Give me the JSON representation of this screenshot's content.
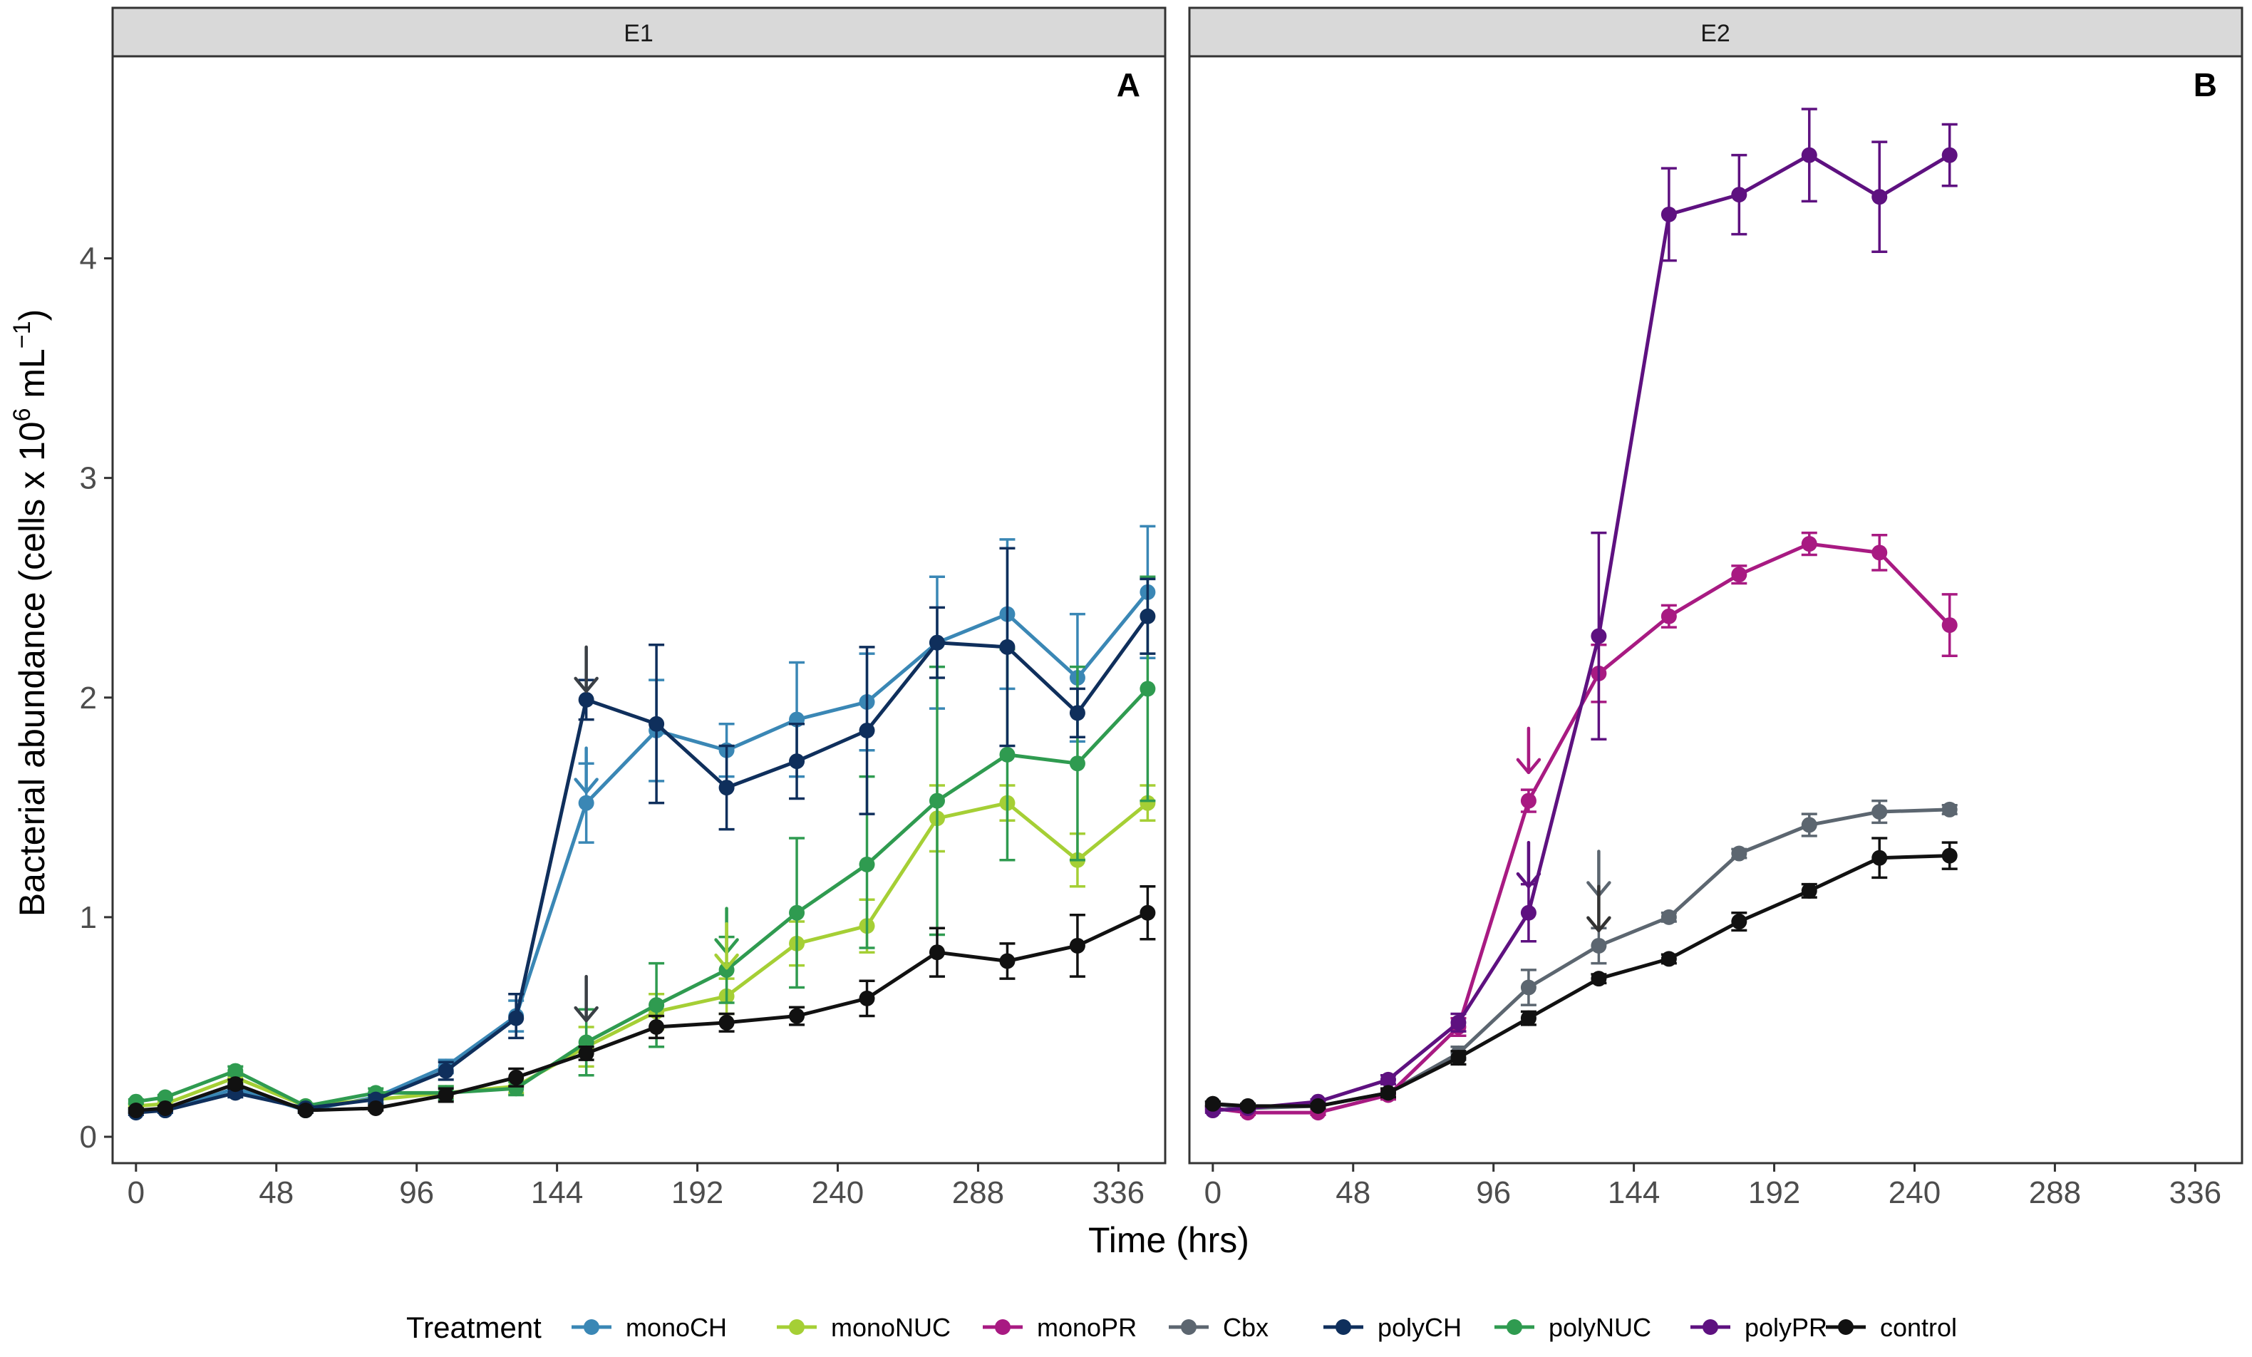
{
  "chart_data": {
    "type": "line",
    "ylabel_prefix": "Bacterial abundance (cells x 10",
    "ylabel_exp1": "6",
    "ylabel_mid": " mL",
    "ylabel_exp2": "−1",
    "ylabel_suffix": ")",
    "xlabel": "Time (hrs)",
    "legend_title": "Treatment",
    "legend_position": "bottom",
    "xlim": [
      -8,
      352
    ],
    "ylim": [
      -0.12,
      4.92
    ],
    "xticks": [
      0,
      48,
      96,
      144,
      192,
      240,
      288,
      336
    ],
    "yticks": [
      0,
      1,
      2,
      3,
      4
    ],
    "treatments": [
      {
        "name": "monoCH",
        "color": "#3A87B5"
      },
      {
        "name": "monoNUC",
        "color": "#A5CF35"
      },
      {
        "name": "monoPR",
        "color": "#A81A82"
      },
      {
        "name": "Cbx",
        "color": "#5C6670"
      },
      {
        "name": "polyCH",
        "color": "#0F2F5C"
      },
      {
        "name": "polyNUC",
        "color": "#2F9B50"
      },
      {
        "name": "polyPR",
        "color": "#5E1180"
      },
      {
        "name": "control",
        "color": "#111111"
      }
    ],
    "panels": [
      {
        "strip": "E1",
        "letter": "A",
        "series": [
          {
            "name": "monoCH",
            "points": [
              [
                0,
                0.12,
                0.13,
                0.11
              ],
              [
                10,
                0.12,
                0.13,
                0.11
              ],
              [
                34,
                0.22,
                0.24,
                0.2
              ],
              [
                58,
                0.12,
                0.13,
                0.11
              ],
              [
                82,
                0.18,
                0.2,
                0.16
              ],
              [
                106,
                0.32,
                0.35,
                0.29
              ],
              [
                130,
                0.55,
                0.62,
                0.48
              ],
              [
                154,
                1.52,
                1.7,
                1.34
              ],
              [
                178,
                1.85,
                2.08,
                1.62
              ],
              [
                202,
                1.76,
                1.88,
                1.64
              ],
              [
                226,
                1.9,
                2.16,
                1.64
              ],
              [
                250,
                1.98,
                2.2,
                1.76
              ],
              [
                274,
                2.25,
                2.55,
                1.95
              ],
              [
                298,
                2.38,
                2.72,
                2.04
              ],
              [
                322,
                2.09,
                2.38,
                1.8
              ],
              [
                346,
                2.48,
                2.78,
                2.18
              ]
            ]
          },
          {
            "name": "monoNUC",
            "points": [
              [
                0,
                0.14,
                0.15,
                0.13
              ],
              [
                10,
                0.15,
                0.16,
                0.14
              ],
              [
                34,
                0.27,
                0.29,
                0.25
              ],
              [
                58,
                0.14,
                0.15,
                0.13
              ],
              [
                82,
                0.17,
                0.19,
                0.15
              ],
              [
                106,
                0.2,
                0.23,
                0.18
              ],
              [
                130,
                0.23,
                0.26,
                0.2
              ],
              [
                154,
                0.41,
                0.5,
                0.32
              ],
              [
                178,
                0.57,
                0.65,
                0.49
              ],
              [
                202,
                0.64,
                0.72,
                0.56
              ],
              [
                226,
                0.88,
                0.98,
                0.78
              ],
              [
                250,
                0.96,
                1.08,
                0.84
              ],
              [
                274,
                1.45,
                1.6,
                1.3
              ],
              [
                298,
                1.52,
                1.6,
                1.44
              ],
              [
                322,
                1.26,
                1.38,
                1.14
              ],
              [
                346,
                1.52,
                1.6,
                1.44
              ]
            ]
          },
          {
            "name": "polyNUC",
            "points": [
              [
                0,
                0.16,
                0.17,
                0.15
              ],
              [
                10,
                0.18,
                0.19,
                0.17
              ],
              [
                34,
                0.3,
                0.32,
                0.28
              ],
              [
                58,
                0.14,
                0.15,
                0.13
              ],
              [
                82,
                0.2,
                0.22,
                0.18
              ],
              [
                106,
                0.2,
                0.23,
                0.17
              ],
              [
                130,
                0.22,
                0.25,
                0.19
              ],
              [
                154,
                0.43,
                0.58,
                0.28
              ],
              [
                178,
                0.6,
                0.79,
                0.41
              ],
              [
                202,
                0.76,
                0.91,
                0.61
              ],
              [
                226,
                1.02,
                1.36,
                0.68
              ],
              [
                250,
                1.24,
                1.64,
                0.86
              ],
              [
                274,
                1.53,
                2.14,
                0.92
              ],
              [
                298,
                1.74,
                2.22,
                1.26
              ],
              [
                322,
                1.7,
                2.14,
                1.26
              ],
              [
                346,
                2.04,
                2.55,
                1.53
              ]
            ]
          },
          {
            "name": "polyCH",
            "points": [
              [
                0,
                0.11,
                0.12,
                0.1
              ],
              [
                10,
                0.12,
                0.13,
                0.11
              ],
              [
                34,
                0.2,
                0.22,
                0.18
              ],
              [
                58,
                0.13,
                0.14,
                0.12
              ],
              [
                82,
                0.17,
                0.19,
                0.15
              ],
              [
                106,
                0.3,
                0.34,
                0.26
              ],
              [
                130,
                0.54,
                0.65,
                0.45
              ],
              [
                154,
                1.99,
                2.08,
                1.9
              ],
              [
                178,
                1.88,
                2.24,
                1.52
              ],
              [
                202,
                1.59,
                1.78,
                1.4
              ],
              [
                226,
                1.71,
                1.88,
                1.54
              ],
              [
                250,
                1.85,
                2.23,
                1.47
              ],
              [
                274,
                2.25,
                2.41,
                2.09
              ],
              [
                298,
                2.23,
                2.68,
                1.78
              ],
              [
                322,
                1.93,
                2.04,
                1.82
              ],
              [
                346,
                2.37,
                2.54,
                2.2
              ]
            ]
          },
          {
            "name": "control",
            "points": [
              [
                0,
                0.12,
                0.13,
                0.11
              ],
              [
                10,
                0.13,
                0.14,
                0.12
              ],
              [
                34,
                0.24,
                0.26,
                0.22
              ],
              [
                58,
                0.12,
                0.13,
                0.11
              ],
              [
                82,
                0.13,
                0.14,
                0.12
              ],
              [
                106,
                0.19,
                0.22,
                0.16
              ],
              [
                130,
                0.27,
                0.31,
                0.23
              ],
              [
                154,
                0.38,
                0.41,
                0.35
              ],
              [
                178,
                0.5,
                0.55,
                0.45
              ],
              [
                202,
                0.52,
                0.56,
                0.48
              ],
              [
                226,
                0.55,
                0.59,
                0.51
              ],
              [
                250,
                0.63,
                0.71,
                0.55
              ],
              [
                274,
                0.84,
                0.95,
                0.73
              ],
              [
                298,
                0.8,
                0.88,
                0.72
              ],
              [
                322,
                0.87,
                1.01,
                0.73
              ],
              [
                346,
                1.02,
                1.14,
                0.9
              ]
            ]
          }
        ],
        "arrows": [
          {
            "x": 154,
            "y": 2.23,
            "color": "#3A3F45"
          },
          {
            "x": 154,
            "y": 1.77,
            "color": "#3A87B5"
          },
          {
            "x": 202,
            "y": 1.04,
            "color": "#2F9B50"
          },
          {
            "x": 202,
            "y": 0.97,
            "color": "#A5CF35"
          },
          {
            "x": 154,
            "y": 0.73,
            "color": "#3A3F45"
          }
        ]
      },
      {
        "strip": "E2",
        "letter": "B",
        "series": [
          {
            "name": "Cbx",
            "points": [
              [
                0,
                0.15,
                0.16,
                0.14
              ],
              [
                12,
                0.13,
                0.14,
                0.12
              ],
              [
                36,
                0.14,
                0.15,
                0.13
              ],
              [
                60,
                0.2,
                0.22,
                0.18
              ],
              [
                84,
                0.38,
                0.41,
                0.35
              ],
              [
                108,
                0.68,
                0.76,
                0.6
              ],
              [
                132,
                0.87,
                0.95,
                0.79
              ],
              [
                156,
                1.0,
                1.02,
                0.98
              ],
              [
                180,
                1.29,
                1.31,
                1.27
              ],
              [
                204,
                1.42,
                1.47,
                1.37
              ],
              [
                228,
                1.48,
                1.53,
                1.43
              ],
              [
                252,
                1.49,
                1.51,
                1.47
              ]
            ]
          },
          {
            "name": "monoPR",
            "points": [
              [
                0,
                0.13,
                0.14,
                0.12
              ],
              [
                12,
                0.11,
                0.12,
                0.1
              ],
              [
                36,
                0.11,
                0.12,
                0.1
              ],
              [
                60,
                0.19,
                0.21,
                0.17
              ],
              [
                84,
                0.5,
                0.54,
                0.46
              ],
              [
                108,
                1.53,
                1.58,
                1.48
              ],
              [
                132,
                2.11,
                2.24,
                1.98
              ],
              [
                156,
                2.37,
                2.42,
                2.32
              ],
              [
                180,
                2.56,
                2.6,
                2.52
              ],
              [
                204,
                2.7,
                2.75,
                2.65
              ],
              [
                228,
                2.66,
                2.74,
                2.58
              ],
              [
                252,
                2.33,
                2.47,
                2.19
              ]
            ]
          },
          {
            "name": "polyPR",
            "points": [
              [
                0,
                0.12,
                0.13,
                0.11
              ],
              [
                12,
                0.13,
                0.14,
                0.12
              ],
              [
                36,
                0.16,
                0.17,
                0.15
              ],
              [
                60,
                0.26,
                0.28,
                0.24
              ],
              [
                84,
                0.52,
                0.56,
                0.48
              ],
              [
                108,
                1.02,
                1.15,
                0.89
              ],
              [
                132,
                2.28,
                2.75,
                1.81
              ],
              [
                156,
                4.2,
                4.41,
                3.99
              ],
              [
                180,
                4.29,
                4.47,
                4.11
              ],
              [
                204,
                4.47,
                4.68,
                4.26
              ],
              [
                228,
                4.28,
                4.53,
                4.03
              ],
              [
                252,
                4.47,
                4.61,
                4.33
              ]
            ]
          },
          {
            "name": "control",
            "points": [
              [
                0,
                0.15,
                0.16,
                0.14
              ],
              [
                12,
                0.14,
                0.15,
                0.13
              ],
              [
                36,
                0.14,
                0.15,
                0.13
              ],
              [
                60,
                0.2,
                0.22,
                0.18
              ],
              [
                84,
                0.36,
                0.39,
                0.33
              ],
              [
                108,
                0.54,
                0.57,
                0.51
              ],
              [
                132,
                0.72,
                0.74,
                0.7
              ],
              [
                156,
                0.81,
                0.83,
                0.79
              ],
              [
                180,
                0.98,
                1.02,
                0.94
              ],
              [
                204,
                1.12,
                1.15,
                1.09
              ],
              [
                228,
                1.27,
                1.36,
                1.18
              ],
              [
                252,
                1.28,
                1.34,
                1.22
              ]
            ]
          }
        ],
        "arrows": [
          {
            "x": 108,
            "y": 1.86,
            "color": "#A81A82"
          },
          {
            "x": 108,
            "y": 1.34,
            "color": "#5E1180"
          },
          {
            "x": 132,
            "y": 1.3,
            "color": "#5C6670"
          },
          {
            "x": 132,
            "y": 1.14,
            "color": "#333333"
          }
        ]
      }
    ]
  }
}
